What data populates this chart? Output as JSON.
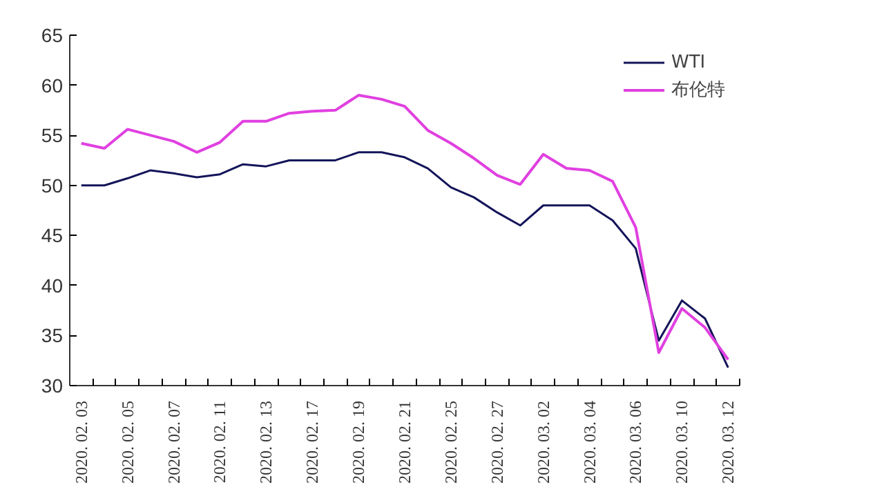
{
  "chart_data": {
    "type": "line",
    "categories": [
      "2020. 02. 03",
      null,
      "2020. 02. 05",
      null,
      "2020. 02. 07",
      null,
      "2020. 02. 11",
      null,
      "2020. 02. 13",
      null,
      "2020. 02. 17",
      null,
      "2020. 02. 19",
      null,
      "2020. 02. 21",
      null,
      "2020. 02. 25",
      null,
      "2020. 02. 27",
      null,
      "2020. 03. 02",
      null,
      "2020. 03. 04",
      null,
      "2020. 03. 06",
      null,
      "2020. 03. 10",
      null,
      "2020. 03. 12"
    ],
    "series": [
      {
        "name": "WTI",
        "color": "#14145a",
        "values": [
          50.0,
          50.0,
          50.7,
          51.5,
          51.2,
          50.8,
          51.1,
          52.1,
          51.9,
          52.5,
          52.5,
          52.5,
          53.3,
          53.3,
          52.8,
          51.7,
          49.8,
          48.8,
          47.3,
          46.0,
          48.0,
          48.0,
          48.0,
          46.5,
          43.7,
          34.5,
          38.5,
          36.7,
          31.8
        ]
      },
      {
        "name": "布伦特",
        "color": "#e040e0",
        "values": [
          54.2,
          53.7,
          55.6,
          55.0,
          54.4,
          53.3,
          54.3,
          56.4,
          56.4,
          57.2,
          57.4,
          57.5,
          59.0,
          58.6,
          57.9,
          55.5,
          54.2,
          52.7,
          51.0,
          50.1,
          53.1,
          51.7,
          51.5,
          50.4,
          45.8,
          33.3,
          37.7,
          35.8,
          32.6
        ]
      }
    ],
    "ylim": [
      30,
      65
    ],
    "yticks": [
      30,
      35,
      40,
      45,
      50,
      55,
      60,
      65
    ],
    "grid": false,
    "legend": "top right"
  }
}
